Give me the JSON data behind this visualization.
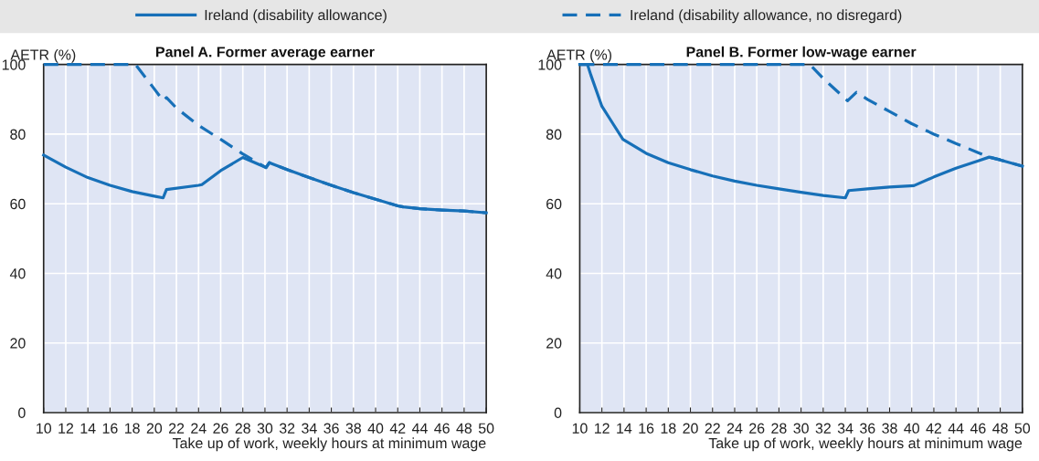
{
  "chart_data": [
    {
      "type": "line",
      "title": "Panel A. Former average earner",
      "ylabel": "AETR (%)",
      "xlabel": "Take up of work, weekly hours at minimum wage",
      "xlim": [
        10,
        50
      ],
      "xticks": [
        10,
        12,
        14,
        16,
        18,
        20,
        22,
        24,
        26,
        28,
        30,
        32,
        34,
        36,
        38,
        40,
        42,
        44,
        46,
        48,
        50
      ],
      "ylim": [
        0,
        100
      ],
      "yticks": [
        0,
        20,
        40,
        60,
        80,
        100
      ],
      "grid": true,
      "legend": "top",
      "series": [
        {
          "name": "Ireland (disability allowance)",
          "color": "#1770b8",
          "line_style": "solid",
          "x": [
            10,
            12,
            14,
            16,
            18,
            20,
            20.8,
            21.1,
            24,
            24.3,
            26,
            28,
            30.1,
            30.4,
            32,
            34,
            36,
            38,
            40,
            42,
            42.5,
            44,
            46,
            48,
            50
          ],
          "values": [
            74,
            70.5,
            67.5,
            65.3,
            63.5,
            62.2,
            61.7,
            64.1,
            65.3,
            65.5,
            69.5,
            73.3,
            70.4,
            71.8,
            69.8,
            67.5,
            65.3,
            63.2,
            61.3,
            59.4,
            59.1,
            58.6,
            58.2,
            57.9,
            57.4
          ]
        },
        {
          "name": "Ireland (disability allowance, no disregard)",
          "color": "#1770b8",
          "line_style": "dashed",
          "x": [
            10,
            18.3,
            20,
            20.8,
            21.1,
            22,
            24,
            26,
            28,
            30.1,
            30.4,
            32,
            34,
            36,
            38,
            40,
            42,
            42.5,
            44,
            46,
            48,
            50
          ],
          "values": [
            100,
            100,
            93,
            89.6,
            90.5,
            87.5,
            82.5,
            78.5,
            74.3,
            70.4,
            71.8,
            69.8,
            67.5,
            65.3,
            63.2,
            61.3,
            59.4,
            59.1,
            58.6,
            58.2,
            57.9,
            57.4
          ]
        }
      ]
    },
    {
      "type": "line",
      "title": "Panel B. Former low-wage earner",
      "ylabel": "AETR (%)",
      "xlabel": "Take up of work, weekly hours at minimum wage",
      "xlim": [
        10,
        50
      ],
      "xticks": [
        10,
        12,
        14,
        16,
        18,
        20,
        22,
        24,
        26,
        28,
        30,
        32,
        34,
        36,
        38,
        40,
        42,
        44,
        46,
        48,
        50
      ],
      "ylim": [
        0,
        100
      ],
      "yticks": [
        0,
        20,
        40,
        60,
        80,
        100
      ],
      "grid": true,
      "series": [
        {
          "color": "#1770b8",
          "line_style": "solid",
          "x": [
            10,
            10.7,
            11,
            12,
            13,
            13.9,
            16,
            18,
            20,
            22,
            24,
            26,
            28,
            30,
            32,
            34,
            34.3,
            36,
            38,
            40.2,
            42,
            44,
            46,
            47,
            48,
            50
          ],
          "values": [
            100,
            100,
            97,
            88,
            83,
            78.5,
            74.5,
            71.8,
            69.8,
            68,
            66.5,
            65.3,
            64.3,
            63.3,
            62.4,
            61.7,
            63.8,
            64.3,
            64.8,
            65.2,
            67.7,
            70.2,
            72.3,
            73.4,
            72.6,
            70.8
          ]
        },
        {
          "color": "#1770b8",
          "line_style": "dashed",
          "x": [
            10,
            30.8,
            32,
            34.2,
            35,
            36,
            38,
            40,
            42,
            44,
            46,
            47,
            48,
            50
          ],
          "values": [
            100,
            100,
            96,
            89.6,
            92,
            90,
            86.5,
            83,
            80,
            77.3,
            74.7,
            73.4,
            72.6,
            70.8
          ]
        }
      ]
    }
  ]
}
